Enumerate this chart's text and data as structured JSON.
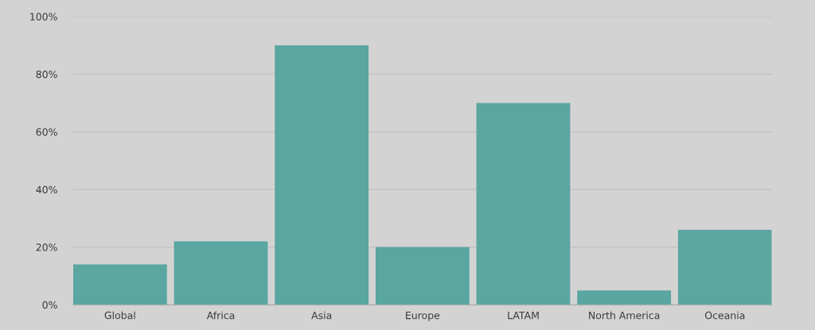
{
  "chart_data": {
    "type": "bar",
    "categories": [
      "Global",
      "Africa",
      "Asia",
      "Europe",
      "LATAM",
      "North America",
      "Oceania"
    ],
    "values": [
      14,
      22,
      90,
      20,
      70,
      5,
      26
    ],
    "color": "#5aa6a1",
    "ylim": [
      0,
      100
    ],
    "yticks": [
      {
        "value": 0,
        "label": "0%"
      },
      {
        "value": 20,
        "label": "20%"
      },
      {
        "value": 40,
        "label": "40%"
      },
      {
        "value": 60,
        "label": "60%"
      },
      {
        "value": 80,
        "label": "80%"
      },
      {
        "value": 100,
        "label": "100%"
      }
    ],
    "grid": "y"
  }
}
